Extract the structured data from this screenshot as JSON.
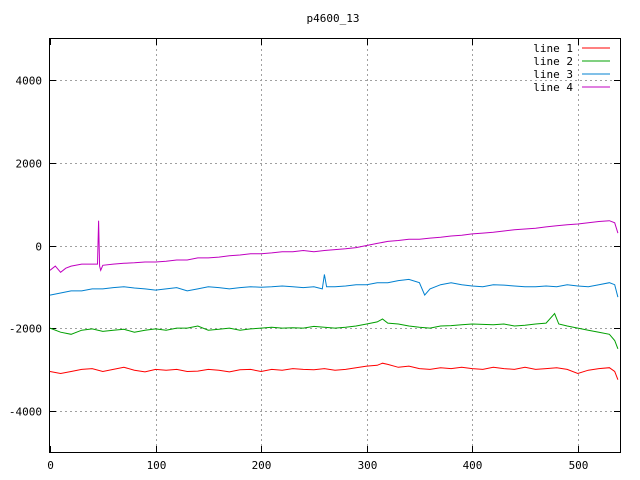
{
  "chart_data": {
    "type": "line",
    "title": "p4600_13",
    "xlabel": "",
    "ylabel": "",
    "xlim": [
      0,
      540
    ],
    "ylim": [
      -5000,
      5000
    ],
    "xticks": [
      0,
      100,
      200,
      300,
      400,
      500
    ],
    "yticks": [
      -4000,
      -2000,
      0,
      2000,
      4000
    ],
    "grid": true,
    "legend_position": "top-right",
    "series": [
      {
        "name": "line 1",
        "color": "#ff0000",
        "x": [
          0,
          10,
          20,
          30,
          40,
          50,
          60,
          70,
          80,
          90,
          100,
          110,
          120,
          130,
          140,
          150,
          160,
          170,
          180,
          190,
          200,
          210,
          220,
          230,
          240,
          250,
          260,
          270,
          280,
          290,
          300,
          310,
          315,
          320,
          330,
          340,
          350,
          360,
          370,
          380,
          390,
          400,
          410,
          420,
          430,
          440,
          450,
          460,
          470,
          480,
          490,
          500,
          510,
          520,
          530,
          535,
          538
        ],
        "y": [
          -3050,
          -3100,
          -3050,
          -3000,
          -2980,
          -3050,
          -3000,
          -2950,
          -3020,
          -3060,
          -3000,
          -3020,
          -3000,
          -3050,
          -3040,
          -3000,
          -3020,
          -3060,
          -3010,
          -3000,
          -3050,
          -3000,
          -3020,
          -2980,
          -3000,
          -3010,
          -2980,
          -3020,
          -3000,
          -2960,
          -2920,
          -2900,
          -2850,
          -2880,
          -2950,
          -2920,
          -2980,
          -3000,
          -2960,
          -2980,
          -2950,
          -2980,
          -3000,
          -2950,
          -2980,
          -3000,
          -2950,
          -3000,
          -2980,
          -2960,
          -3000,
          -3100,
          -3020,
          -2980,
          -2960,
          -3050,
          -3250
        ]
      },
      {
        "name": "line 2",
        "color": "#00a000",
        "x": [
          0,
          10,
          20,
          30,
          40,
          50,
          60,
          70,
          80,
          90,
          100,
          110,
          120,
          130,
          140,
          150,
          160,
          170,
          180,
          190,
          200,
          210,
          220,
          230,
          240,
          250,
          260,
          270,
          280,
          290,
          300,
          310,
          315,
          320,
          330,
          340,
          350,
          360,
          370,
          380,
          390,
          400,
          410,
          420,
          430,
          440,
          450,
          460,
          470,
          478,
          482,
          490,
          500,
          510,
          520,
          530,
          535,
          538
        ],
        "y": [
          -2000,
          -2100,
          -2150,
          -2050,
          -2020,
          -2080,
          -2050,
          -2030,
          -2100,
          -2050,
          -2020,
          -2050,
          -2000,
          -2000,
          -1950,
          -2050,
          -2030,
          -2000,
          -2050,
          -2020,
          -2000,
          -1980,
          -2000,
          -1990,
          -2000,
          -1960,
          -1980,
          -2000,
          -1980,
          -1950,
          -1900,
          -1850,
          -1780,
          -1880,
          -1900,
          -1950,
          -1980,
          -2000,
          -1950,
          -1940,
          -1920,
          -1900,
          -1910,
          -1920,
          -1900,
          -1950,
          -1930,
          -1900,
          -1880,
          -1650,
          -1900,
          -1950,
          -2000,
          -2050,
          -2100,
          -2150,
          -2300,
          -2500
        ]
      },
      {
        "name": "line 3",
        "color": "#0080d0",
        "x": [
          0,
          10,
          20,
          30,
          40,
          50,
          60,
          70,
          80,
          90,
          100,
          110,
          120,
          130,
          140,
          150,
          160,
          170,
          180,
          190,
          200,
          210,
          220,
          230,
          240,
          250,
          258,
          260,
          262,
          270,
          280,
          290,
          300,
          310,
          320,
          330,
          340,
          350,
          355,
          360,
          370,
          380,
          390,
          400,
          410,
          420,
          430,
          440,
          450,
          460,
          470,
          480,
          490,
          500,
          510,
          520,
          530,
          535,
          538
        ],
        "y": [
          -1200,
          -1150,
          -1100,
          -1100,
          -1050,
          -1050,
          -1020,
          -1000,
          -1030,
          -1050,
          -1080,
          -1050,
          -1020,
          -1100,
          -1050,
          -1000,
          -1020,
          -1050,
          -1020,
          -1000,
          -1010,
          -1000,
          -980,
          -1000,
          -1020,
          -1000,
          -1050,
          -700,
          -1000,
          -1000,
          -980,
          -950,
          -950,
          -900,
          -900,
          -850,
          -820,
          -900,
          -1200,
          -1050,
          -950,
          -900,
          -950,
          -980,
          -1000,
          -950,
          -960,
          -980,
          -1000,
          -1000,
          -980,
          -1000,
          -950,
          -980,
          -1000,
          -950,
          -900,
          -950,
          -1250
        ]
      },
      {
        "name": "line 4",
        "color": "#c000c0",
        "x": [
          0,
          5,
          10,
          15,
          20,
          30,
          40,
          45,
          46,
          47,
          48,
          50,
          60,
          70,
          80,
          90,
          100,
          110,
          120,
          130,
          140,
          150,
          160,
          170,
          180,
          190,
          200,
          210,
          220,
          230,
          240,
          250,
          260,
          270,
          280,
          290,
          300,
          310,
          320,
          330,
          340,
          350,
          360,
          370,
          380,
          390,
          400,
          410,
          420,
          430,
          440,
          450,
          460,
          470,
          480,
          490,
          500,
          510,
          520,
          530,
          535,
          538
        ],
        "y": [
          -600,
          -500,
          -650,
          -550,
          -500,
          -450,
          -450,
          -450,
          600,
          -500,
          -600,
          -480,
          -450,
          -430,
          -420,
          -400,
          -400,
          -380,
          -350,
          -350,
          -300,
          -300,
          -280,
          -250,
          -230,
          -200,
          -200,
          -180,
          -150,
          -150,
          -120,
          -150,
          -120,
          -100,
          -80,
          -50,
          0,
          50,
          100,
          120,
          150,
          150,
          180,
          200,
          230,
          250,
          280,
          300,
          320,
          350,
          380,
          400,
          420,
          450,
          480,
          500,
          520,
          550,
          580,
          600,
          550,
          300
        ]
      }
    ]
  }
}
